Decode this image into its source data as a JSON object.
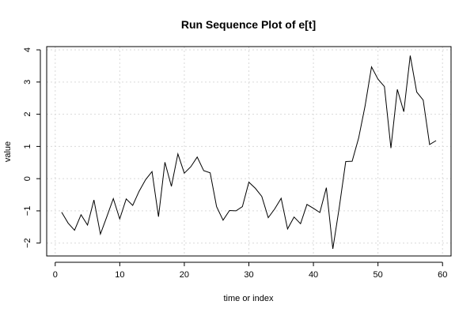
{
  "chart_data": {
    "type": "line",
    "title": "Run Sequence Plot of e[t]",
    "xlabel": "time or index",
    "ylabel": "value",
    "xlim": [
      -1.32,
      61.32
    ],
    "ylim": [
      -2.4,
      4.1
    ],
    "x_ticks": [
      0,
      10,
      20,
      30,
      40,
      50,
      60
    ],
    "y_ticks": [
      -2,
      -1,
      0,
      1,
      2,
      3,
      4
    ],
    "grid": true,
    "series": [
      {
        "color": "#000000",
        "x": [
          1,
          2,
          3,
          4,
          5,
          6,
          7,
          8,
          9,
          10,
          11,
          12,
          13,
          14,
          15,
          16,
          17,
          18,
          19,
          20,
          21,
          22,
          23,
          24,
          25,
          26,
          27,
          28,
          29,
          30,
          31,
          32,
          33,
          34,
          35,
          36,
          37,
          38,
          39,
          40,
          41,
          42,
          43,
          44,
          45,
          46,
          47,
          48,
          49,
          50,
          51,
          52,
          53,
          54,
          55,
          56,
          57,
          58,
          59
        ],
        "values": [
          -1.04,
          -1.38,
          -1.6,
          -1.12,
          -1.44,
          -0.66,
          -1.72,
          -1.18,
          -0.62,
          -1.25,
          -0.63,
          -0.83,
          -0.39,
          -0.03,
          0.22,
          -1.18,
          0.51,
          -0.24,
          0.77,
          0.17,
          0.37,
          0.67,
          0.25,
          0.18,
          -0.87,
          -1.29,
          -0.99,
          -1.0,
          -0.87,
          -0.11,
          -0.3,
          -0.55,
          -1.21,
          -0.94,
          -0.61,
          -1.56,
          -1.19,
          -1.4,
          -0.8,
          -0.92,
          -1.05,
          -0.28,
          -2.18,
          -0.9,
          0.53,
          0.54,
          1.26,
          2.25,
          3.47,
          3.09,
          2.86,
          0.95,
          2.77,
          2.08,
          3.82,
          2.69,
          2.44,
          1.06,
          1.18
        ]
      }
    ]
  }
}
